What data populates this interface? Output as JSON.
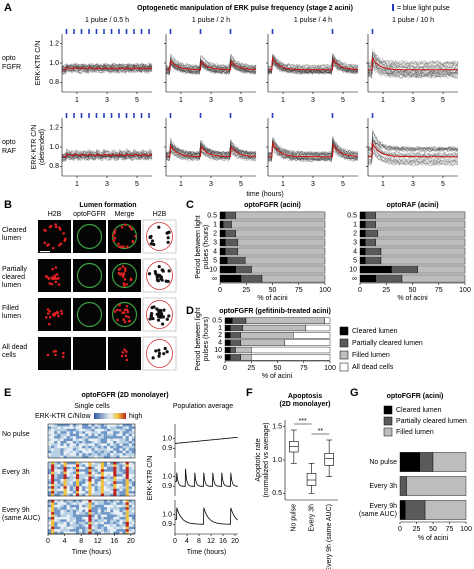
{
  "panel_A": {
    "letter": "A",
    "title": "Optogenetic manipulation of ERK pulse frequency (stage 2 acini)",
    "legend": "= blue light pulse",
    "columns": [
      "1 pulse / 0.5 h",
      "1 pulse / 2 h",
      "1 pulse / 4 h",
      "1 pulse / 10 h"
    ],
    "rows": [
      {
        "label": [
          "opto",
          "FGFR"
        ],
        "ylabel": "ERK-KTR C/N"
      },
      {
        "label": [
          "opto",
          "RAF"
        ],
        "ylabel": [
          "ERK-KTR C/N",
          "(detrended)"
        ]
      }
    ],
    "ylim": [
      0.7,
      1.3
    ],
    "yticks": [
      1.2,
      {
        "value": 1,
        "label": "1.0"
      },
      0.8
    ],
    "xlim": [
      0,
      6
    ],
    "xticks": [
      1,
      3,
      5
    ],
    "xlabel": "time (hours)"
  },
  "panel_B": {
    "letter": "B",
    "title": "Lumen formation",
    "columns": [
      "H2B",
      "optoFGFR",
      "Merge",
      "H2B"
    ],
    "rows": [
      [
        "Cleared",
        "lumen"
      ],
      [
        "Partially",
        "cleared",
        "lumen"
      ],
      [
        "Filled",
        "lumen"
      ],
      [
        "All dead",
        "cells"
      ]
    ]
  },
  "panel_C": {
    "letter": "C",
    "ylabel": [
      "Period between light",
      "pulses (hours)"
    ],
    "xlabel": "% of acini",
    "xlim": [
      0,
      100
    ],
    "xticks": [
      0,
      25,
      50,
      75,
      100
    ],
    "colors": [
      "#000000",
      "#5a5a5a",
      "#bdbdbd",
      "#ffffff"
    ],
    "charts": [
      {
        "title": "optoFGFR (acini)",
        "categories": [
          "0.5",
          "1",
          "2",
          "3",
          "4",
          "5",
          "10",
          "∞"
        ],
        "values": [
          [
            5,
            10,
            85,
            0
          ],
          [
            3,
            8,
            89,
            0
          ],
          [
            5,
            10,
            85,
            0
          ],
          [
            5,
            12,
            83,
            0
          ],
          [
            5,
            12,
            83,
            0
          ],
          [
            7,
            17,
            76,
            0
          ],
          [
            15,
            15,
            70,
            0
          ],
          [
            20,
            20,
            60,
            0
          ]
        ]
      },
      {
        "title": "optoRAF (acini)",
        "categories": [
          "0.5",
          "1",
          "2",
          "3",
          "4",
          "5",
          "10",
          "∞"
        ],
        "values": [
          [
            5,
            10,
            85,
            0
          ],
          [
            5,
            10,
            85,
            0
          ],
          [
            5,
            12,
            83,
            0
          ],
          [
            5,
            10,
            85,
            0
          ],
          [
            5,
            15,
            80,
            0
          ],
          [
            5,
            15,
            80,
            0
          ],
          [
            30,
            25,
            45,
            0
          ],
          [
            15,
            25,
            60,
            0
          ]
        ]
      }
    ]
  },
  "panel_D": {
    "letter": "D",
    "title": "optoFGFR (gefitinib-treated acini)",
    "ylabel": [
      "Period between light",
      "pulses (hours)"
    ],
    "xlabel": "% of acini",
    "xlim": [
      0,
      100
    ],
    "xticks": [
      0,
      25,
      50,
      75,
      100
    ],
    "colors": [
      "#000000",
      "#5a5a5a",
      "#bdbdbd",
      "#ffffff"
    ],
    "categories": [
      "0.5",
      "1",
      "2",
      "4",
      "10",
      "∞"
    ],
    "values": [
      [
        7,
        13,
        75,
        5
      ],
      [
        5,
        12,
        60,
        23
      ],
      [
        5,
        10,
        50,
        35
      ],
      [
        5,
        10,
        42,
        43
      ],
      [
        5,
        5,
        15,
        75
      ],
      [
        5,
        10,
        10,
        75
      ]
    ],
    "legend": [
      "Cleared lumen",
      "Partially cleared lumen",
      "Filled lumen",
      "All dead cells"
    ]
  },
  "panel_E": {
    "letter": "E",
    "title": "optoFGFR (2D monolayer)",
    "heatmap_title": "Single cells",
    "avg_title": "Population average",
    "scale_label": "ERK-KTR C/N",
    "scale_low": "low",
    "scale_high": "high",
    "rows": [
      [
        "No pulse"
      ],
      [
        "Every 3h"
      ],
      [
        "Every 9h",
        "(same AUC)"
      ]
    ],
    "xlim": [
      0,
      21
    ],
    "xticks": [
      0,
      4,
      8,
      12,
      16,
      20
    ],
    "xlabel": "Time (hours)",
    "ylabel": "ERK-KTR C/N",
    "ylim": [
      0.8,
      1.15
    ],
    "yticks": [
      {
        "value": 1,
        "label": "1.0"
      },
      0.9
    ]
  },
  "panel_F": {
    "letter": "F",
    "title": [
      "Apoptosis",
      "(2D monolayer)"
    ],
    "ylabel": [
      "Apoptotic rate",
      "(normalized vs average)"
    ],
    "categories": [
      "No pulse",
      "Every 3h",
      "Every 9h (same AUC)"
    ],
    "ylim": [
      0.4,
      1.6
    ],
    "yticks": [
      0.5,
      {
        "value": 1,
        "label": "1.0"
      },
      1.5
    ],
    "boxes": [
      {
        "low": 0.95,
        "q1": 1.12,
        "median": 1.2,
        "q3": 1.28,
        "high": 1.45
      },
      {
        "low": 0.5,
        "q1": 0.62,
        "median": 0.7,
        "q3": 0.8,
        "high": 0.95
      },
      {
        "low": 0.75,
        "q1": 0.92,
        "median": 1.02,
        "q3": 1.1,
        "high": 1.3
      }
    ],
    "significance": [
      "***",
      "**"
    ]
  },
  "panel_G": {
    "letter": "G",
    "title": "optoFGFR (acini)",
    "legend": [
      "Cleared lumen",
      "Partially cleared lumen",
      "Filled lumen"
    ],
    "colors": [
      "#000000",
      "#5a5a5a",
      "#bdbdbd"
    ],
    "categories": [
      [
        "No pulse"
      ],
      [
        "Every 3h"
      ],
      [
        "Every 9h",
        "(same AUC)"
      ]
    ],
    "values": [
      [
        30,
        20,
        50
      ],
      [
        0,
        10,
        90
      ],
      [
        8,
        30,
        62
      ]
    ],
    "xlim": [
      0,
      100
    ],
    "xticks": [
      0,
      25,
      50,
      75,
      100
    ],
    "xlabel": "% of acini"
  }
}
